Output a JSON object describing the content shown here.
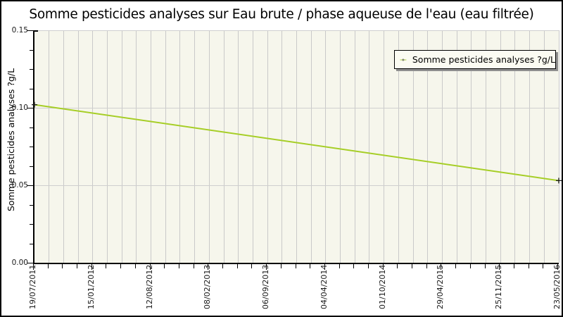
{
  "legend": {
    "label": "Somme pesticides analyses ?g/L"
  },
  "colors": {
    "line": "#a6ce26",
    "marker": "#1a1a1a",
    "plot_background": "#f6f6ec",
    "gridline": "#c9c9c9",
    "axis": "#000000",
    "legend_background": "#fbfbf2",
    "legend_shadow": "#8f8f8f",
    "page_background": "#ffffff"
  },
  "chart_data": {
    "type": "line",
    "title": "Somme pesticides analyses sur Eau brute / phase aqueuse de l'eau (eau filtrée)",
    "xlabel": "",
    "ylabel": "Somme pesticides analyses ?g/L",
    "ylim": [
      0,
      0.15
    ],
    "y_tick_labels": [
      "0.00",
      "0.05",
      "0.10",
      "0.15"
    ],
    "y_minor_step": 0.0125,
    "x_tick_labels": [
      "19/07/2011",
      "15/01/2012",
      "12/08/2012",
      "08/02/2013",
      "06/09/2013",
      "04/04/2014",
      "01/10/2014",
      "29/04/2015",
      "25/11/2015",
      "23/05/2016"
    ],
    "x_minor_divisions_per_interval": 4,
    "grid": {
      "vertical": true,
      "horizontal_lines_at": [
        0.05,
        0.1,
        0.15
      ]
    },
    "legend_position": "upper right",
    "series": [
      {
        "name": "Somme pesticides analyses ?g/L",
        "color": "#a6ce26",
        "marker": "+",
        "points": [
          {
            "x": "19/07/2011",
            "y": 0.102
          },
          {
            "x": "23/05/2016",
            "y": 0.053
          }
        ]
      }
    ]
  }
}
